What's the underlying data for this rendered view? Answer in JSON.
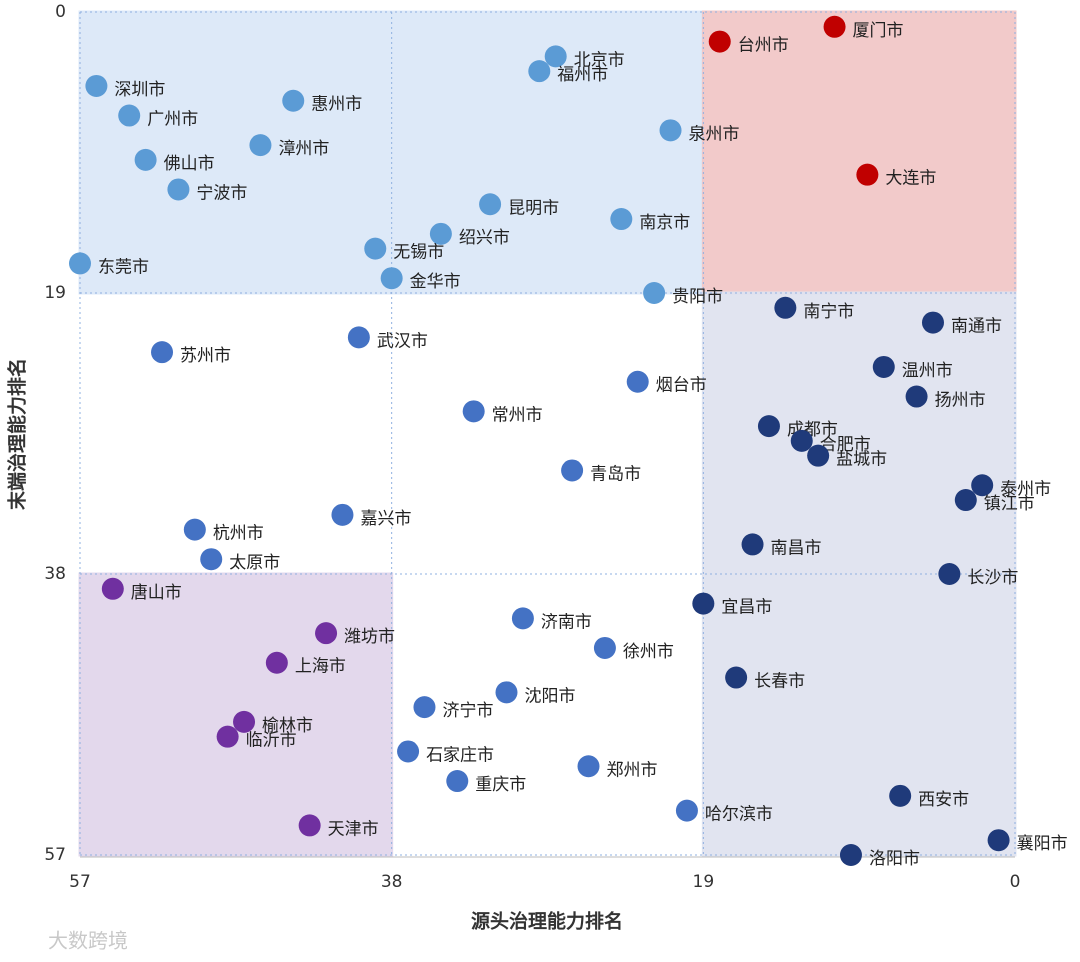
{
  "chart_data": {
    "type": "scatter",
    "x_label": "源头治理能力排名",
    "y_label": "末端治理能力排名",
    "watermark": "大数跨境",
    "xlim": [
      57,
      0
    ],
    "ylim": [
      57,
      0
    ],
    "xticks": [
      57,
      38,
      19,
      0
    ],
    "yticks": [
      0,
      19,
      38,
      57
    ],
    "grid": true,
    "shaded_regions": [
      {
        "xlim": [
          57,
          19
        ],
        "ylim": [
          19,
          0
        ],
        "color": "#dce8f8"
      },
      {
        "xlim": [
          19,
          0
        ],
        "ylim": [
          19,
          0
        ],
        "color": "#f2c8c8"
      },
      {
        "xlim": [
          57,
          38
        ],
        "ylim": [
          57,
          38
        ],
        "color": "#e2d6ec"
      },
      {
        "xlim": [
          19,
          0
        ],
        "ylim": [
          57,
          19
        ],
        "color": "#e0e3f0"
      }
    ],
    "labels": [
      "厦门市",
      "台州市",
      "大连市",
      "北京市",
      "福州市",
      "深圳市",
      "惠州市",
      "广州市",
      "泉州市",
      "漳州市",
      "佛山市",
      "宁波市",
      "昆明市",
      "南京市",
      "绍兴市",
      "无锡市",
      "东莞市",
      "金华市",
      "贵阳市",
      "南宁市",
      "南通市",
      "武汉市",
      "苏州市",
      "温州市",
      "烟台市",
      "扬州市",
      "常州市",
      "成都市",
      "合肥市",
      "盐城市",
      "青岛市",
      "泰州市",
      "镇江市",
      "嘉兴市",
      "杭州市",
      "南昌市",
      "太原市",
      "长沙市",
      "唐山市",
      "宜昌市",
      "济南市",
      "潍坊市",
      "徐州市",
      "上海市",
      "长春市",
      "沈阳市",
      "济宁市",
      "榆林市",
      "临沂市",
      "石家庄市",
      "郑州市",
      "重庆市",
      "西安市",
      "哈尔滨市",
      "天津市",
      "襄阳市",
      "洛阳市"
    ],
    "x": [
      11,
      18,
      9,
      28,
      29,
      56,
      44,
      54,
      21,
      46,
      53,
      51,
      32,
      24,
      35,
      39,
      57,
      38,
      22,
      14,
      5,
      40,
      52,
      8,
      23,
      6,
      33,
      15,
      13,
      12,
      27,
      2,
      3,
      41,
      50,
      16,
      49,
      4,
      55,
      19,
      30,
      42,
      25,
      45,
      17,
      31,
      36,
      47,
      48,
      37,
      26,
      34,
      7,
      20,
      43,
      1,
      10
    ],
    "y": [
      1,
      2,
      11,
      3,
      4,
      5,
      6,
      7,
      8,
      9,
      10,
      12,
      13,
      14,
      15,
      16,
      17,
      18,
      19,
      20,
      21,
      22,
      23,
      24,
      25,
      26,
      27,
      28,
      29,
      30,
      31,
      32,
      33,
      34,
      35,
      36,
      37,
      38,
      39,
      40,
      41,
      42,
      43,
      44,
      45,
      46,
      47,
      48,
      49,
      50,
      51,
      52,
      53,
      54,
      55,
      56,
      57
    ],
    "colors": [
      "#c00000",
      "#c00000",
      "#c00000",
      "#5b9bd5",
      "#5b9bd5",
      "#5b9bd5",
      "#5b9bd5",
      "#5b9bd5",
      "#5b9bd5",
      "#5b9bd5",
      "#5b9bd5",
      "#5b9bd5",
      "#5b9bd5",
      "#5b9bd5",
      "#5b9bd5",
      "#5b9bd5",
      "#5b9bd5",
      "#5b9bd5",
      "#5b9bd5",
      "#1f3a7a",
      "#1f3a7a",
      "#4472c4",
      "#4472c4",
      "#1f3a7a",
      "#4472c4",
      "#1f3a7a",
      "#4472c4",
      "#1f3a7a",
      "#1f3a7a",
      "#1f3a7a",
      "#4472c4",
      "#1f3a7a",
      "#1f3a7a",
      "#4472c4",
      "#4472c4",
      "#1f3a7a",
      "#4472c4",
      "#1f3a7a",
      "#7030a0",
      "#1f3a7a",
      "#4472c4",
      "#7030a0",
      "#4472c4",
      "#7030a0",
      "#1f3a7a",
      "#4472c4",
      "#4472c4",
      "#7030a0",
      "#7030a0",
      "#4472c4",
      "#4472c4",
      "#4472c4",
      "#1f3a7a",
      "#4472c4",
      "#7030a0",
      "#1f3a7a",
      "#1f3a7a"
    ]
  }
}
